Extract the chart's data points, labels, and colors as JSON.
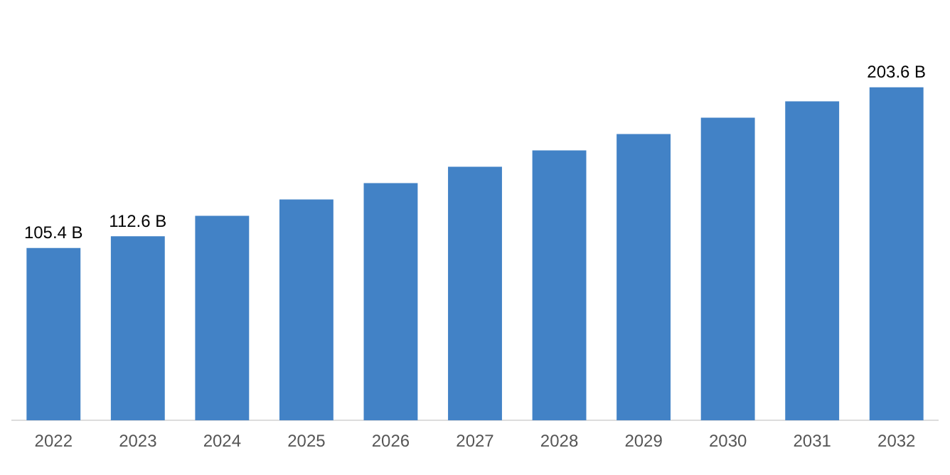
{
  "chart_data": {
    "type": "bar",
    "categories": [
      "2022",
      "2023",
      "2024",
      "2025",
      "2026",
      "2027",
      "2028",
      "2029",
      "2030",
      "2031",
      "2032"
    ],
    "values": [
      105.4,
      112.6,
      125,
      135,
      145,
      155,
      165,
      175,
      185,
      195,
      203.6
    ],
    "value_labels": [
      "105.4 B",
      "112.6 B",
      null,
      null,
      null,
      null,
      null,
      null,
      null,
      null,
      "203.6 B"
    ],
    "color": "#4282c6",
    "grid": false,
    "legend": false
  }
}
